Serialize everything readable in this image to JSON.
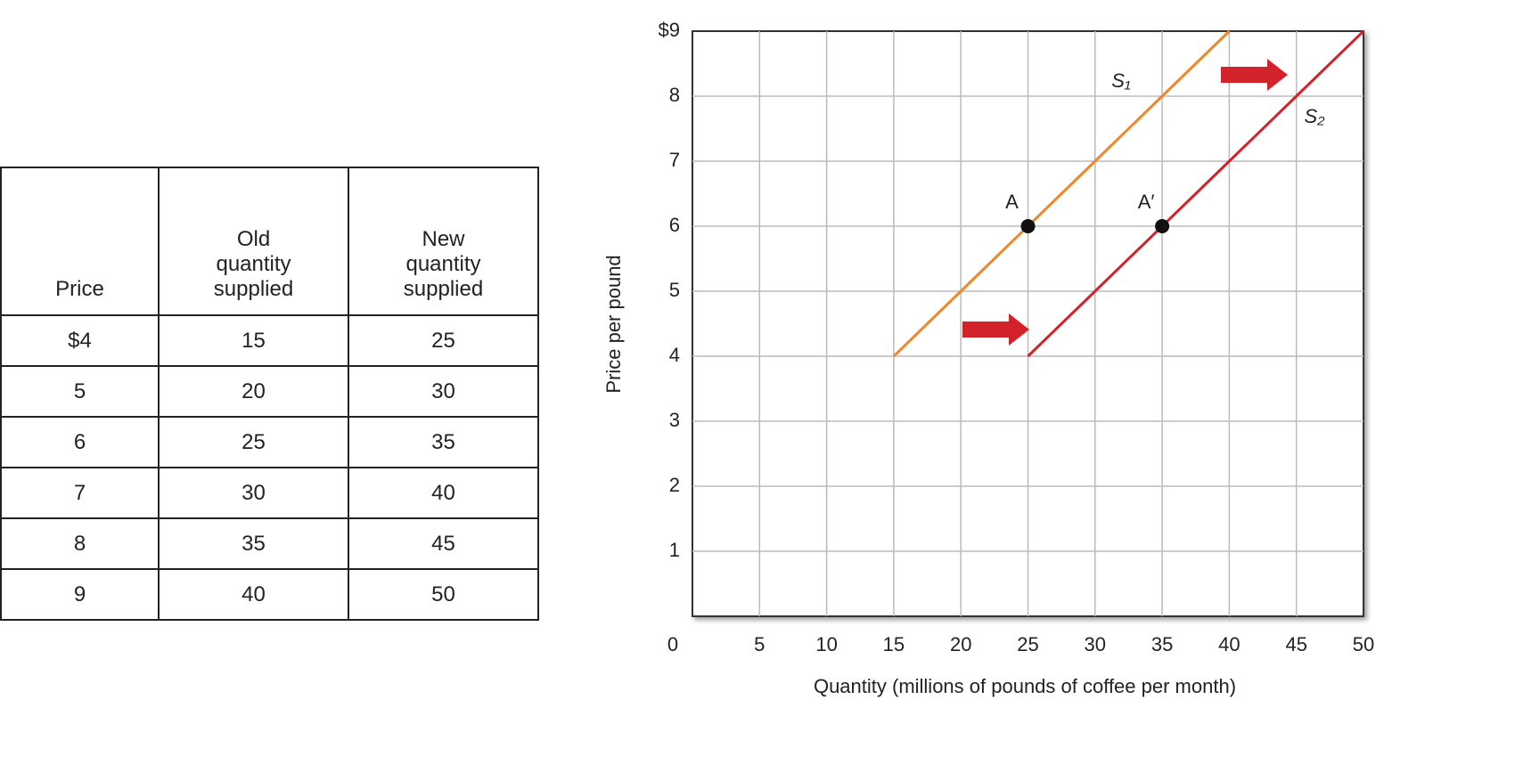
{
  "table": {
    "headers": [
      "Price",
      "Old quantity supplied",
      "New quantity supplied"
    ],
    "rows": [
      [
        "$4",
        15,
        25
      ],
      [
        5,
        20,
        30
      ],
      [
        6,
        25,
        35
      ],
      [
        7,
        30,
        40
      ],
      [
        8,
        35,
        45
      ],
      [
        9,
        40,
        50
      ]
    ]
  },
  "chart_data": {
    "type": "line",
    "xlabel": "Quantity (millions of pounds of coffee per month)",
    "ylabel": "Price per pound",
    "xlim": [
      0,
      50
    ],
    "ylim": [
      0,
      9
    ],
    "xticks": [
      0,
      5,
      10,
      15,
      20,
      25,
      30,
      35,
      40,
      45,
      50
    ],
    "yticks": [
      1,
      2,
      3,
      4,
      5,
      6,
      7,
      8,
      {
        "value": 9,
        "label": "$9"
      }
    ],
    "grid": true,
    "series": [
      {
        "name": "S₁",
        "color": "#f0872a",
        "x": [
          15,
          20,
          25,
          30,
          35,
          40
        ],
        "values": [
          4,
          5,
          6,
          7,
          8,
          9
        ]
      },
      {
        "name": "S₂",
        "color": "#d2232a",
        "x": [
          25,
          30,
          35,
          40,
          45,
          50
        ],
        "values": [
          4,
          5,
          6,
          7,
          8,
          9
        ]
      }
    ],
    "points": [
      {
        "label": "A",
        "x": 25,
        "y": 6
      },
      {
        "label": "A′",
        "x": 35,
        "y": 6
      }
    ]
  }
}
